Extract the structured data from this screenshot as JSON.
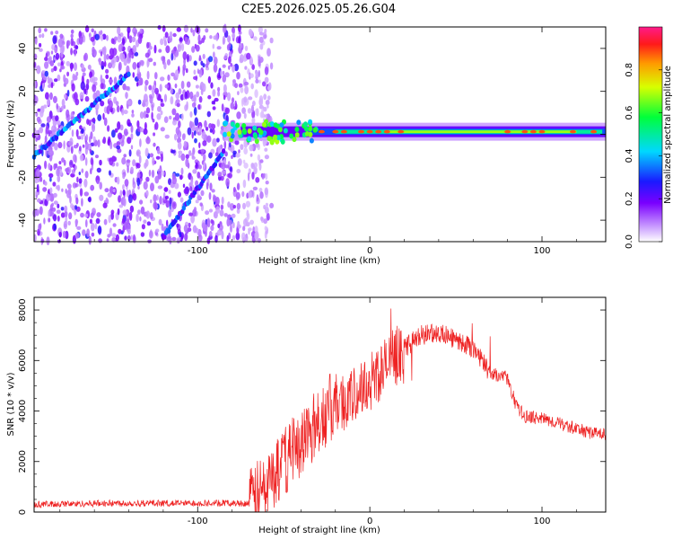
{
  "title": "C2E5.2026.025.05.26.G04",
  "chart_data": [
    {
      "type": "heatmap",
      "name": "spectrogram",
      "xlabel": "Height of straight line (km)",
      "ylabel": "Frequency (Hz)",
      "xlim": [
        -195,
        137
      ],
      "ylim": [
        -50,
        50
      ],
      "xticks": [
        -100,
        0,
        100
      ],
      "yticks": [
        -40,
        -20,
        0,
        20,
        40
      ],
      "colorbar": {
        "label": "Normalized spectral amplitude",
        "range": [
          0,
          1
        ],
        "ticks": [
          0.0,
          0.2,
          0.4,
          0.6,
          0.8
        ]
      },
      "features": [
        {
          "name": "broadband noise region",
          "x_range": [
            -195,
            -65
          ],
          "y_range": [
            -50,
            50
          ],
          "amplitude": 0.15
        },
        {
          "name": "rising streak upper",
          "x": [
            -195,
            -140
          ],
          "y": [
            -10,
            28
          ],
          "amplitude": 0.4
        },
        {
          "name": "rising streak lower",
          "x": [
            -120,
            -85
          ],
          "y": [
            -48,
            -8
          ],
          "amplitude": 0.35
        },
        {
          "name": "carrier line",
          "x": [
            -85,
            137
          ],
          "y": [
            2,
            -1
          ],
          "amplitude": 0.8
        }
      ]
    },
    {
      "type": "line",
      "name": "snr",
      "xlabel": "Height of straight line (km)",
      "ylabel": "SNR (10 * v/v)",
      "xlim": [
        -195,
        137
      ],
      "ylim": [
        0,
        8500
      ],
      "xticks": [
        -100,
        0,
        100
      ],
      "yticks": [
        0,
        2000,
        4000,
        6000,
        8000
      ],
      "color": "#ee2222",
      "envelope": {
        "x": [
          -195,
          -150,
          -100,
          -70,
          -60,
          -50,
          -40,
          -30,
          -20,
          -10,
          0,
          10,
          20,
          30,
          40,
          50,
          60,
          70,
          80,
          85,
          90,
          100,
          110,
          120,
          130,
          137
        ],
        "y": [
          300,
          350,
          350,
          350,
          1000,
          2000,
          2800,
          3600,
          4300,
          4500,
          5200,
          5800,
          6500,
          7000,
          7100,
          6800,
          6500,
          5500,
          5300,
          4200,
          3800,
          3700,
          3500,
          3300,
          3100,
          3100
        ]
      }
    }
  ]
}
